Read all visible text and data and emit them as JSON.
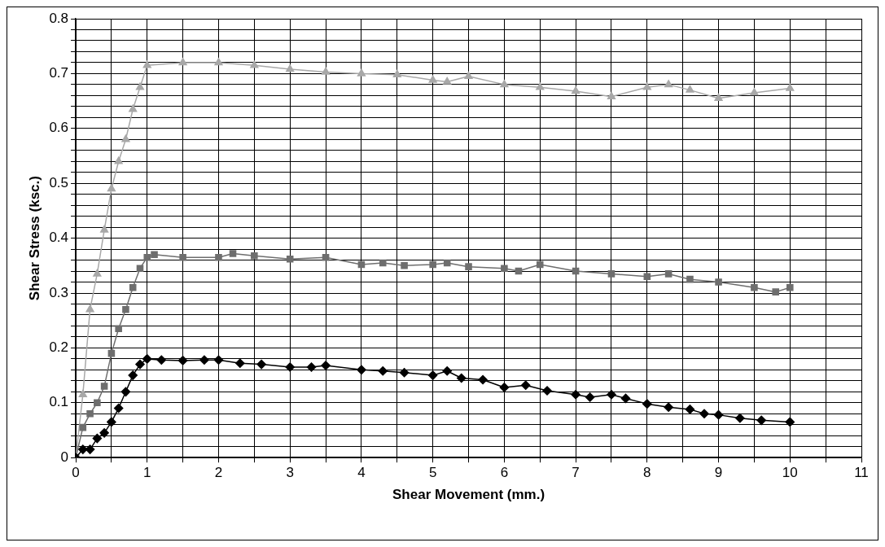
{
  "chart_data": {
    "type": "line",
    "xlabel": "Shear Movement (mm.)",
    "ylabel": "Shear Stress (ksc.)",
    "xlim": [
      0,
      11
    ],
    "ylim": [
      0,
      0.8
    ],
    "xticks": [
      0,
      {
        "value": 0.5,
        "label": null
      },
      1,
      {
        "value": 1.5,
        "label": null
      },
      2,
      {
        "value": 2.5,
        "label": null
      },
      3,
      {
        "value": 3.5,
        "label": null
      },
      4,
      {
        "value": 4.5,
        "label": null
      },
      5,
      {
        "value": 5.5,
        "label": null
      },
      6,
      {
        "value": 6.5,
        "label": null
      },
      7,
      {
        "value": 7.5,
        "label": null
      },
      8,
      {
        "value": 8.5,
        "label": null
      },
      9,
      {
        "value": 9.5,
        "label": null
      },
      10,
      {
        "value": 10.5,
        "label": null
      },
      11
    ],
    "yticks": [
      0,
      {
        "value": 0.02,
        "label": null
      },
      {
        "value": 0.04,
        "label": null
      },
      {
        "value": 0.06,
        "label": null
      },
      {
        "value": 0.08,
        "label": null
      },
      0.1,
      {
        "value": 0.12,
        "label": null
      },
      {
        "value": 0.14,
        "label": null
      },
      {
        "value": 0.16,
        "label": null
      },
      {
        "value": 0.18,
        "label": null
      },
      0.2,
      {
        "value": 0.22,
        "label": null
      },
      {
        "value": 0.24,
        "label": null
      },
      {
        "value": 0.26,
        "label": null
      },
      {
        "value": 0.28,
        "label": null
      },
      0.3,
      {
        "value": 0.32,
        "label": null
      },
      {
        "value": 0.34,
        "label": null
      },
      {
        "value": 0.36,
        "label": null
      },
      {
        "value": 0.38,
        "label": null
      },
      0.4,
      {
        "value": 0.42,
        "label": null
      },
      {
        "value": 0.44,
        "label": null
      },
      {
        "value": 0.46,
        "label": null
      },
      {
        "value": 0.48,
        "label": null
      },
      0.5,
      {
        "value": 0.52,
        "label": null
      },
      {
        "value": 0.54,
        "label": null
      },
      {
        "value": 0.56,
        "label": null
      },
      {
        "value": 0.58,
        "label": null
      },
      0.6,
      {
        "value": 0.62,
        "label": null
      },
      {
        "value": 0.64,
        "label": null
      },
      {
        "value": 0.66,
        "label": null
      },
      {
        "value": 0.68,
        "label": null
      },
      0.7,
      {
        "value": 0.72,
        "label": null
      },
      {
        "value": 0.74,
        "label": null
      },
      {
        "value": 0.76,
        "label": null
      },
      {
        "value": 0.78,
        "label": null
      },
      0.8
    ],
    "grid": true,
    "legend": false,
    "series": [
      {
        "color": "#000000",
        "marker": "diamond",
        "x": [
          0,
          0.1,
          0.2,
          0.3,
          0.4,
          0.5,
          0.6,
          0.7,
          0.8,
          0.9,
          1.0,
          1.2,
          1.5,
          1.8,
          2.0,
          2.3,
          2.6,
          3.0,
          3.3,
          3.5,
          4.0,
          4.3,
          4.6,
          5.0,
          5.2,
          5.4,
          5.7,
          6.0,
          6.3,
          6.6,
          7.0,
          7.2,
          7.5,
          7.7,
          8.0,
          8.3,
          8.6,
          8.8,
          9.0,
          9.3,
          9.6,
          10
        ],
        "values": [
          0,
          0.015,
          0.015,
          0.035,
          0.045,
          0.065,
          0.09,
          0.12,
          0.15,
          0.17,
          0.18,
          0.178,
          0.177,
          0.178,
          0.178,
          0.172,
          0.17,
          0.165,
          0.165,
          0.168,
          0.16,
          0.158,
          0.155,
          0.15,
          0.158,
          0.145,
          0.142,
          0.128,
          0.132,
          0.122,
          0.115,
          0.11,
          0.115,
          0.108,
          0.098,
          0.092,
          0.088,
          0.08,
          0.078,
          0.072,
          0.068,
          0.065
        ]
      },
      {
        "color": "#6e6e6e",
        "marker": "square",
        "x": [
          0,
          0.1,
          0.2,
          0.3,
          0.4,
          0.5,
          0.6,
          0.7,
          0.8,
          0.9,
          1.0,
          1.1,
          1.5,
          2.0,
          2.2,
          2.5,
          3.0,
          3.5,
          4.0,
          4.3,
          4.6,
          5.0,
          5.2,
          5.5,
          6.0,
          6.2,
          6.5,
          7.0,
          7.5,
          8.0,
          8.3,
          8.6,
          9.0,
          9.5,
          9.8,
          10
        ],
        "values": [
          0,
          0.055,
          0.08,
          0.1,
          0.13,
          0.19,
          0.235,
          0.27,
          0.31,
          0.345,
          0.365,
          0.37,
          0.365,
          0.365,
          0.372,
          0.368,
          0.362,
          0.365,
          0.352,
          0.355,
          0.35,
          0.352,
          0.355,
          0.348,
          0.345,
          0.34,
          0.352,
          0.34,
          0.335,
          0.33,
          0.335,
          0.325,
          0.32,
          0.31,
          0.302,
          0.31
        ]
      },
      {
        "color": "#a8a8a8",
        "marker": "triangle",
        "x": [
          0,
          0.1,
          0.2,
          0.3,
          0.4,
          0.5,
          0.6,
          0.7,
          0.8,
          0.9,
          1.0,
          1.5,
          2.0,
          2.5,
          3.0,
          3.5,
          4.0,
          4.5,
          5.0,
          5.2,
          5.5,
          6.0,
          6.5,
          7.0,
          7.5,
          8.0,
          8.3,
          8.6,
          9.0,
          9.5,
          10
        ],
        "values": [
          0,
          0.115,
          0.27,
          0.335,
          0.415,
          0.49,
          0.54,
          0.58,
          0.635,
          0.675,
          0.715,
          0.72,
          0.72,
          0.715,
          0.708,
          0.703,
          0.7,
          0.698,
          0.688,
          0.685,
          0.695,
          0.68,
          0.675,
          0.668,
          0.658,
          0.675,
          0.68,
          0.67,
          0.655,
          0.665,
          0.673
        ]
      }
    ]
  }
}
